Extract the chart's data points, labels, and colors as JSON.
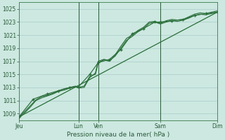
{
  "xlabel": "Pression niveau de la mer( hPa )",
  "bg_color": "#cce8e0",
  "grid_color": "#aacccc",
  "line_color": "#2a6e3a",
  "vline_color": "#2a5a3a",
  "ylim": [
    1008.0,
    1026.0
  ],
  "yticks": [
    1009,
    1011,
    1013,
    1015,
    1017,
    1019,
    1021,
    1023,
    1025
  ],
  "xlim": [
    0,
    7.0
  ],
  "xtick_positions": [
    0.0,
    2.1,
    2.8,
    5.0,
    7.0
  ],
  "xtick_labels": [
    "Jeu",
    "Lun",
    "Ven",
    "Sam",
    "Dim"
  ],
  "vline_positions": [
    2.1,
    2.8,
    5.0,
    7.0
  ],
  "line1_x": [
    0,
    0.2,
    0.4,
    0.6,
    0.8,
    1.0,
    1.2,
    1.4,
    1.6,
    1.8,
    2.0,
    2.1,
    2.3,
    2.5,
    2.7,
    2.8,
    3.0,
    3.2,
    3.4,
    3.6,
    3.8,
    4.0,
    4.2,
    4.4,
    4.6,
    4.8,
    5.0,
    5.2,
    5.4,
    5.6,
    5.8,
    6.0,
    6.2,
    6.4,
    6.6,
    6.8,
    7.0
  ],
  "line1_y": [
    1008.5,
    1009.3,
    1010.2,
    1011.1,
    1011.6,
    1011.8,
    1012.1,
    1012.5,
    1012.8,
    1013.0,
    1013.2,
    1013.0,
    1013.2,
    1014.7,
    1015.0,
    1016.8,
    1017.2,
    1017.0,
    1018.0,
    1019.3,
    1020.5,
    1021.0,
    1021.7,
    1022.2,
    1023.0,
    1023.1,
    1022.8,
    1023.2,
    1023.4,
    1023.3,
    1023.4,
    1023.8,
    1024.2,
    1024.4,
    1024.3,
    1024.5,
    1024.7
  ],
  "line2_x": [
    0,
    0.2,
    0.4,
    0.6,
    0.8,
    1.0,
    1.2,
    1.4,
    1.6,
    1.8,
    2.0,
    2.1,
    2.3,
    2.5,
    2.7,
    2.8,
    3.0,
    3.2,
    3.4,
    3.6,
    3.8,
    4.0,
    4.2,
    4.4,
    4.6,
    4.8,
    5.0,
    5.2,
    5.4,
    5.6,
    5.8,
    6.0,
    6.2,
    6.4,
    6.6,
    6.8,
    7.0
  ],
  "line2_y": [
    1008.3,
    1009.1,
    1010.0,
    1011.0,
    1011.4,
    1011.7,
    1012.0,
    1012.4,
    1012.6,
    1012.9,
    1013.1,
    1012.9,
    1013.0,
    1014.5,
    1015.2,
    1017.0,
    1017.3,
    1017.1,
    1017.8,
    1019.0,
    1020.2,
    1020.8,
    1021.5,
    1022.0,
    1022.8,
    1023.0,
    1022.7,
    1023.0,
    1023.2,
    1023.1,
    1023.3,
    1023.6,
    1024.0,
    1024.2,
    1024.1,
    1024.3,
    1024.5
  ],
  "line3_x": [
    0,
    0.5,
    1.0,
    1.4,
    1.8,
    2.1,
    2.5,
    2.8,
    3.2,
    3.6,
    4.0,
    4.4,
    4.8,
    5.0,
    5.4,
    5.8,
    6.2,
    6.6,
    7.0
  ],
  "line3_y": [
    1008.5,
    1011.2,
    1012.0,
    1012.5,
    1013.0,
    1013.1,
    1015.0,
    1016.8,
    1017.3,
    1018.8,
    1021.2,
    1022.0,
    1023.0,
    1023.0,
    1023.2,
    1023.4,
    1024.0,
    1024.3,
    1024.5
  ],
  "trend_x": [
    0,
    7.0
  ],
  "trend_y": [
    1008.5,
    1024.5
  ]
}
